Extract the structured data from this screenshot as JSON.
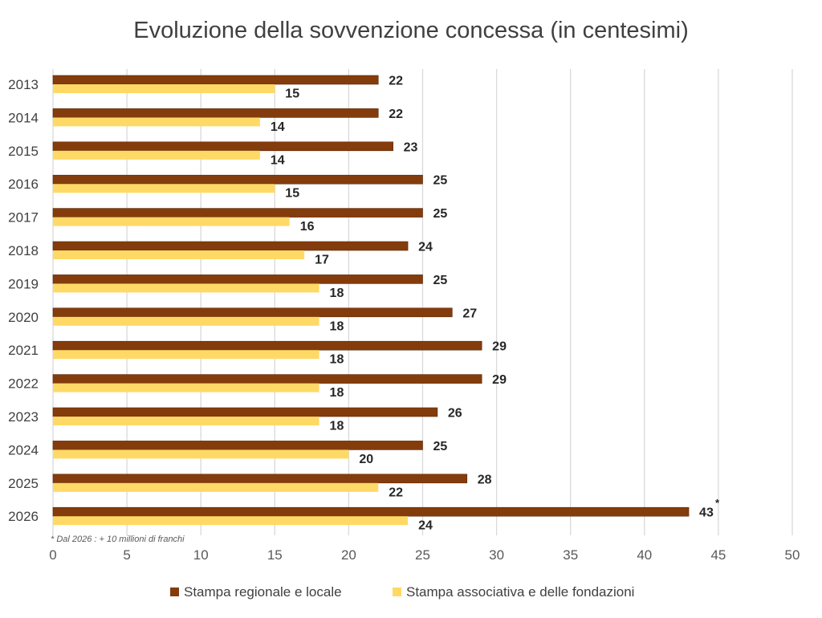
{
  "chart_data": {
    "type": "bar",
    "orientation": "horizontal",
    "title": "Evoluzione della sovvenzione concessa (in centesimi)",
    "xlabel": "",
    "ylabel": "",
    "categories": [
      "2013",
      "2014",
      "2015",
      "2016",
      "2017",
      "2018",
      "2019",
      "2020",
      "2021",
      "2022",
      "2023",
      "2024",
      "2025",
      "2026"
    ],
    "series": [
      {
        "name": "Stampa regionale e locale",
        "color": "#843C0C",
        "values": [
          22,
          22,
          23,
          25,
          25,
          24,
          25,
          27,
          29,
          29,
          26,
          25,
          28,
          43
        ]
      },
      {
        "name": "Stampa associativa e delle fondazioni",
        "color": "#FFD966",
        "values": [
          15,
          14,
          14,
          15,
          16,
          17,
          18,
          18,
          18,
          18,
          18,
          20,
          22,
          24
        ]
      }
    ],
    "xlim": [
      0,
      50
    ],
    "xticks": [
      0,
      5,
      10,
      15,
      20,
      25,
      30,
      35,
      40,
      45,
      50
    ],
    "grid": true,
    "legend_position": "bottom",
    "annotation_marker": "*",
    "annotation_category": "2026",
    "footnote": "* Dal 2026 : + 10 millioni di franchi"
  }
}
